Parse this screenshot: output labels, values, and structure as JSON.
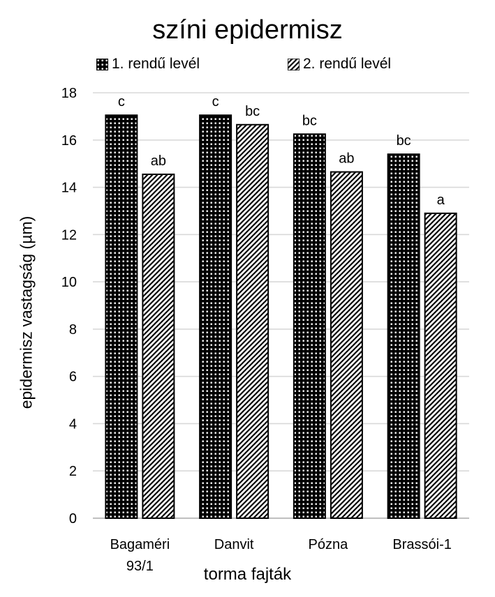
{
  "chart_data": {
    "type": "bar",
    "title": "színi epidermisz",
    "ylabel": "epidermisz vastagság (µm)",
    "xlabel": "torma fajták",
    "categories": [
      [
        "Bagaméri",
        "93/1"
      ],
      [
        "Danvit"
      ],
      [
        "Pózna"
      ],
      [
        "Brassói-1"
      ]
    ],
    "series": [
      {
        "name": "1. rendű levél",
        "values": [
          17.05,
          17.05,
          16.25,
          15.4
        ],
        "labels": [
          "c",
          "c",
          "bc",
          "bc"
        ],
        "pattern": "dots"
      },
      {
        "name": "2. rendű levél",
        "values": [
          14.55,
          16.65,
          14.65,
          12.9
        ],
        "labels": [
          "ab",
          "bc",
          "ab",
          "a"
        ],
        "pattern": "hatch"
      }
    ],
    "ylim": [
      0,
      18
    ],
    "yticks": [
      0,
      2,
      4,
      6,
      8,
      10,
      12,
      14,
      16,
      18
    ],
    "grid": true,
    "legend_position": "top",
    "colors": {
      "bar_fill": "#000000",
      "gridline": "#d9d9d9"
    }
  }
}
